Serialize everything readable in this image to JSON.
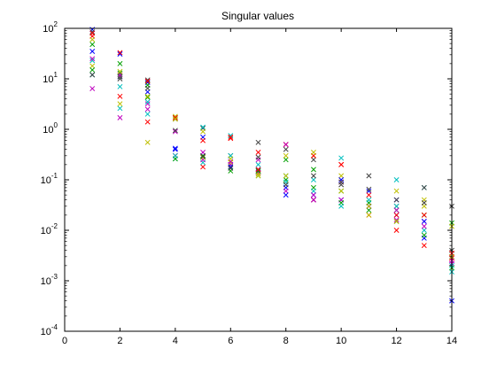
{
  "chart_data": {
    "type": "scatter",
    "title": "Singular values",
    "xlabel": "",
    "ylabel": "",
    "xlim": [
      0,
      14
    ],
    "ylim": [
      0.0001,
      100
    ],
    "yscale": "log",
    "grid": false,
    "marker": "x",
    "x_ticks": [
      0,
      2,
      4,
      6,
      8,
      10,
      12,
      14
    ],
    "y_ticks": [
      {
        "value": 0.0001,
        "base": "10",
        "exp": "-4"
      },
      {
        "value": 0.001,
        "base": "10",
        "exp": "-3"
      },
      {
        "value": 0.01,
        "base": "10",
        "exp": "-2"
      },
      {
        "value": 0.1,
        "base": "10",
        "exp": "-1"
      },
      {
        "value": 1,
        "base": "10",
        "exp": "0"
      },
      {
        "value": 10,
        "base": "10",
        "exp": "1"
      },
      {
        "value": 100,
        "base": "10",
        "exp": "2"
      }
    ],
    "series": [
      {
        "color": "#0000ff",
        "values": [
          95,
          11,
          8.5,
          0.42,
          0.3,
          0.2,
          0.15,
          0.07,
          0.04,
          0.04,
          0.03,
          0.02,
          0.007,
          0.0004
        ]
      },
      {
        "color": "#00a000",
        "values": [
          48,
          13,
          4.3,
          1.7,
          0.28,
          0.18,
          0.14,
          0.1,
          0.07,
          0.06,
          0.035,
          0.025,
          0.008,
          0.014
        ]
      },
      {
        "color": "#ff0000",
        "values": [
          70,
          4.5,
          1.4,
          0.3,
          0.18,
          0.66,
          0.35,
          0.5,
          0.04,
          0.2,
          0.02,
          0.01,
          0.005,
          0.0028
        ]
      },
      {
        "color": "#00bfbf",
        "values": [
          23,
          2.6,
          2.0,
          0.26,
          0.22,
          0.75,
          0.12,
          0.12,
          0.06,
          0.27,
          0.03,
          0.1,
          0.07,
          0.0015
        ]
      },
      {
        "color": "#bf00bf",
        "values": [
          6.4,
          1.7,
          3.2,
          0.3,
          0.25,
          0.2,
          0.14,
          0.06,
          0.04,
          0.04,
          0.03,
          0.016,
          0.015,
          0.0022
        ]
      },
      {
        "color": "#bfbf00",
        "values": [
          18,
          3.2,
          0.55,
          1.8,
          0.28,
          0.22,
          0.13,
          0.12,
          0.3,
          0.12,
          0.02,
          0.06,
          0.03,
          0.012
        ]
      },
      {
        "color": "#404040",
        "values": [
          85,
          11,
          9.5,
          1.6,
          1.05,
          0.3,
          0.55,
          0.4,
          0.25,
          0.08,
          0.12,
          0.03,
          0.07,
          0.004
        ]
      },
      {
        "color": "#0000ff",
        "values": [
          35,
          31,
          5.5,
          0.4,
          0.7,
          0.18,
          0.16,
          0.05,
          0.05,
          0.1,
          0.06,
          0.04,
          0.015,
          0.003
        ]
      },
      {
        "color": "#00a000",
        "values": [
          15,
          20,
          7.5,
          0.26,
          0.3,
          0.15,
          0.15,
          0.25,
          0.16,
          0.035,
          0.025,
          0.015,
          0.02,
          0.0018
        ]
      },
      {
        "color": "#ff0000",
        "values": [
          80,
          33,
          9,
          1.7,
          0.6,
          0.7,
          0.16,
          0.5,
          0.3,
          0.2,
          0.05,
          0.02,
          0.02,
          0.0035
        ]
      },
      {
        "color": "#00bfbf",
        "values": [
          12,
          7,
          3.5,
          0.3,
          1.1,
          0.3,
          0.2,
          0.09,
          0.1,
          0.03,
          0.04,
          0.03,
          0.01,
          0.002
        ]
      },
      {
        "color": "#bf00bf",
        "values": [
          25,
          12,
          2.5,
          0.9,
          0.35,
          0.23,
          0.25,
          0.5,
          0.05,
          0.09,
          0.03,
          0.025,
          0.012,
          0.0025
        ]
      },
      {
        "color": "#bfbf00",
        "values": [
          60,
          14,
          4.5,
          1.6,
          0.9,
          0.26,
          0.12,
          0.3,
          0.35,
          0.06,
          0.03,
          0.015,
          0.04,
          0.003
        ]
      },
      {
        "color": "#404040",
        "values": [
          12,
          10,
          6.5,
          0.95,
          0.29,
          0.17,
          0.28,
          0.08,
          0.12,
          0.09,
          0.065,
          0.04,
          0.035,
          0.03
        ]
      }
    ]
  }
}
